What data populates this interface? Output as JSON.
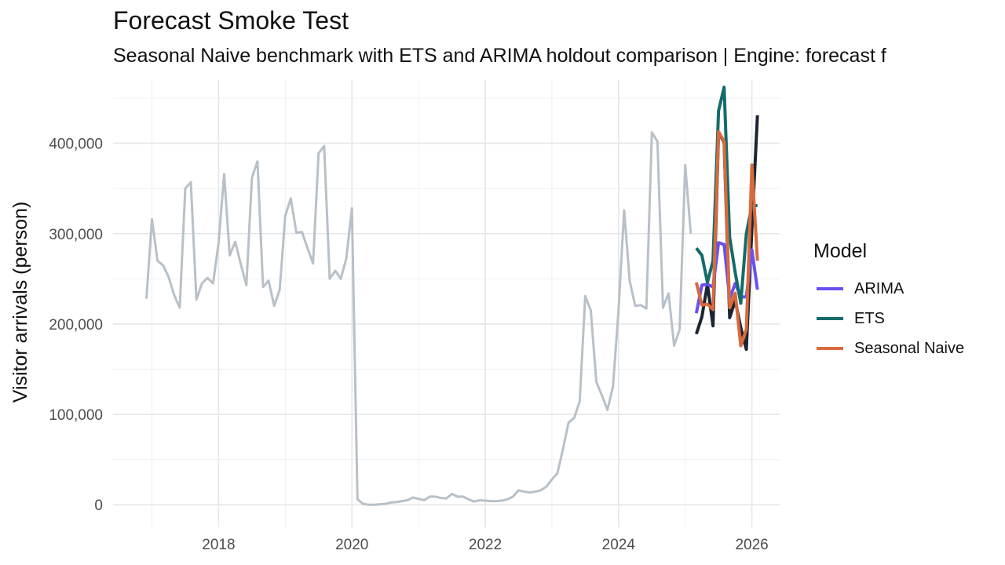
{
  "chart_data": {
    "type": "line",
    "title": "Forecast Smoke Test",
    "subtitle": "Seasonal Naive benchmark with ETS and ARIMA holdout comparison | Engine: forecast f",
    "xlabel": "",
    "ylabel": "Visitor arrivals (person)",
    "xlim": [
      "2016-06",
      "2026-06"
    ],
    "ylim": [
      -25000,
      470000
    ],
    "x_ticks": [
      "2018",
      "2020",
      "2022",
      "2024",
      "2026"
    ],
    "y_ticks": [
      0,
      100000,
      200000,
      300000,
      400000
    ],
    "y_tick_labels": [
      "0",
      "100,000",
      "200,000",
      "300,000",
      "400,000"
    ],
    "grid": true,
    "legend": {
      "title": "Model",
      "position": "right"
    },
    "series": [
      {
        "key": "history",
        "color": "#b8c0c8",
        "x": [
          "2016-12",
          "2017-01",
          "2017-02",
          "2017-03",
          "2017-04",
          "2017-05",
          "2017-06",
          "2017-07",
          "2017-08",
          "2017-09",
          "2017-10",
          "2017-11",
          "2017-12",
          "2018-01",
          "2018-02",
          "2018-03",
          "2018-04",
          "2018-05",
          "2018-06",
          "2018-07",
          "2018-08",
          "2018-09",
          "2018-10",
          "2018-11",
          "2018-12",
          "2019-01",
          "2019-02",
          "2019-03",
          "2019-04",
          "2019-05",
          "2019-06",
          "2019-07",
          "2019-08",
          "2019-09",
          "2019-10",
          "2019-11",
          "2019-12",
          "2020-01",
          "2020-02",
          "2020-03",
          "2020-04",
          "2020-05",
          "2020-06",
          "2020-07",
          "2020-08",
          "2020-09",
          "2020-10",
          "2020-11",
          "2020-12",
          "2021-01",
          "2021-02",
          "2021-03",
          "2021-04",
          "2021-05",
          "2021-06",
          "2021-07",
          "2021-08",
          "2021-09",
          "2021-10",
          "2021-11",
          "2021-12",
          "2022-01",
          "2022-02",
          "2022-03",
          "2022-04",
          "2022-05",
          "2022-06",
          "2022-07",
          "2022-08",
          "2022-09",
          "2022-10",
          "2022-11",
          "2022-12",
          "2023-01",
          "2023-02",
          "2023-03",
          "2023-04",
          "2023-05",
          "2023-06",
          "2023-07",
          "2023-08",
          "2023-09",
          "2023-10",
          "2023-11",
          "2023-12",
          "2024-01",
          "2024-02",
          "2024-03",
          "2024-04",
          "2024-05",
          "2024-06",
          "2024-07",
          "2024-08",
          "2024-09",
          "2024-10",
          "2024-11",
          "2024-12",
          "2025-01",
          "2025-02"
        ],
        "values": [
          228000,
          316000,
          270000,
          265000,
          252000,
          232000,
          218000,
          350000,
          357000,
          227000,
          245000,
          251000,
          245000,
          290000,
          366000,
          276000,
          291000,
          266000,
          243000,
          362000,
          380000,
          241000,
          248000,
          220000,
          238000,
          320000,
          339000,
          301000,
          302000,
          284000,
          267000,
          389000,
          397000,
          250000,
          259000,
          250000,
          273000,
          328000,
          6000,
          1000,
          0,
          0,
          500,
          1000,
          2500,
          3000,
          4000,
          5000,
          8000,
          6500,
          5000,
          9000,
          9000,
          7500,
          7000,
          12000,
          9000,
          9000,
          6000,
          3500,
          5000,
          4500,
          4000,
          4000,
          4500,
          6000,
          9000,
          16000,
          14500,
          13500,
          14500,
          16000,
          20000,
          28000,
          35000,
          62000,
          91000,
          96000,
          114000,
          231000,
          215000,
          136000,
          121000,
          105000,
          131000,
          216000,
          326000,
          248000,
          220000,
          221000,
          217000,
          412000,
          402000,
          218000,
          234000,
          176000,
          194000,
          376000,
          300000
        ]
      },
      {
        "key": "actual",
        "color": "#1c2433",
        "x": [
          "2025-03",
          "2025-04",
          "2025-05",
          "2025-06",
          "2025-07",
          "2025-08",
          "2025-09",
          "2025-10",
          "2025-11",
          "2025-12",
          "2026-01",
          "2026-02"
        ],
        "values": [
          189000,
          208000,
          244000,
          198000,
          412000,
          401000,
          207000,
          226000,
          196000,
          172000,
          305000,
          431000
        ]
      },
      {
        "name": "ARIMA",
        "color": "#6b4ff0",
        "x": [
          "2025-03",
          "2025-04",
          "2025-05",
          "2025-06",
          "2025-07",
          "2025-08",
          "2025-09",
          "2025-10",
          "2025-11",
          "2025-12",
          "2026-01",
          "2026-02"
        ],
        "values": [
          212000,
          243000,
          244000,
          241000,
          290000,
          288000,
          228000,
          245000,
          230000,
          230000,
          282000,
          238000
        ]
      },
      {
        "name": "ETS",
        "color": "#146c6a",
        "x": [
          "2025-03",
          "2025-04",
          "2025-05",
          "2025-06",
          "2025-07",
          "2025-08",
          "2025-09",
          "2025-10",
          "2025-11",
          "2025-12",
          "2026-01",
          "2026-02"
        ],
        "values": [
          284000,
          276000,
          246000,
          270000,
          436000,
          462000,
          296000,
          257000,
          223000,
          300000,
          331000,
          331000
        ]
      },
      {
        "name": "Seasonal Naive",
        "color": "#d96a3c",
        "x": [
          "2025-03",
          "2025-04",
          "2025-05",
          "2025-06",
          "2025-07",
          "2025-08",
          "2025-09",
          "2025-10",
          "2025-11",
          "2025-12",
          "2026-01",
          "2026-02"
        ],
        "values": [
          246000,
          221000,
          222000,
          216000,
          413000,
          402000,
          218000,
          234000,
          176000,
          194000,
          376000,
          270000
        ]
      }
    ]
  }
}
